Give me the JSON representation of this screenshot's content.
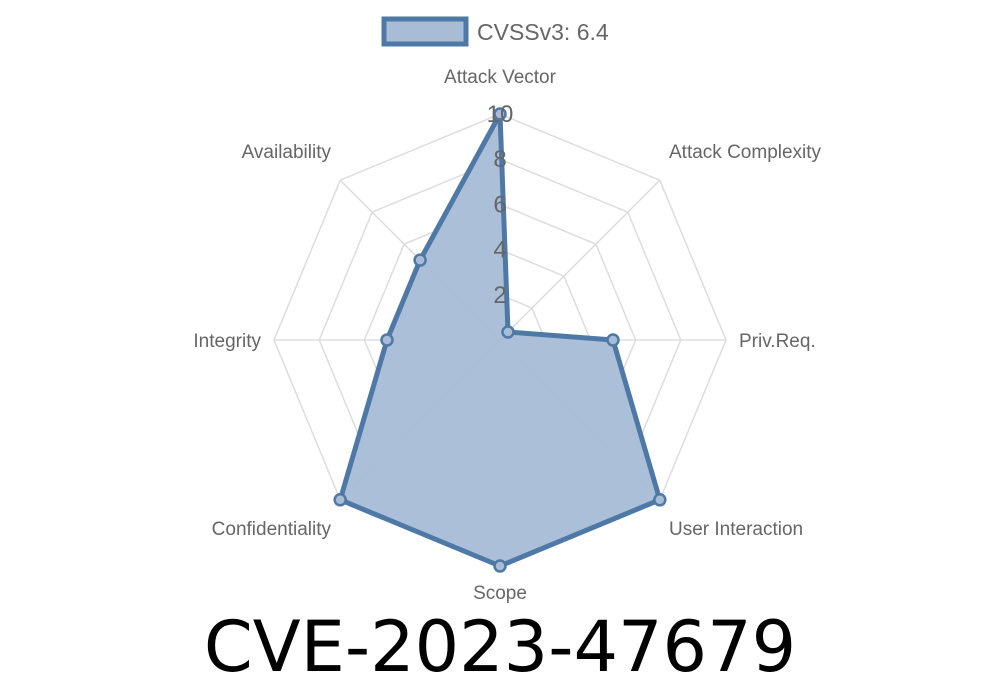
{
  "title": "CVE-2023-47679",
  "chart_data": {
    "type": "radar",
    "axes": [
      "Attack Vector",
      "Attack Complexity",
      "Priv.Req.",
      "User Interaction",
      "Scope",
      "Confidentiality",
      "Integrity",
      "Availability"
    ],
    "series": [
      {
        "name": "CVSSv3: 6.4",
        "values": [
          10,
          0.5,
          5,
          10,
          10,
          10,
          5,
          5
        ]
      }
    ],
    "r_range": [
      0,
      10
    ],
    "ticks": [
      "2",
      "4",
      "6",
      "8",
      "10"
    ],
    "legend_position": "top",
    "grid": true,
    "colors": {
      "line": "#4e79a7",
      "fill": "#a8bcd6",
      "grid": "#dddddd"
    }
  }
}
